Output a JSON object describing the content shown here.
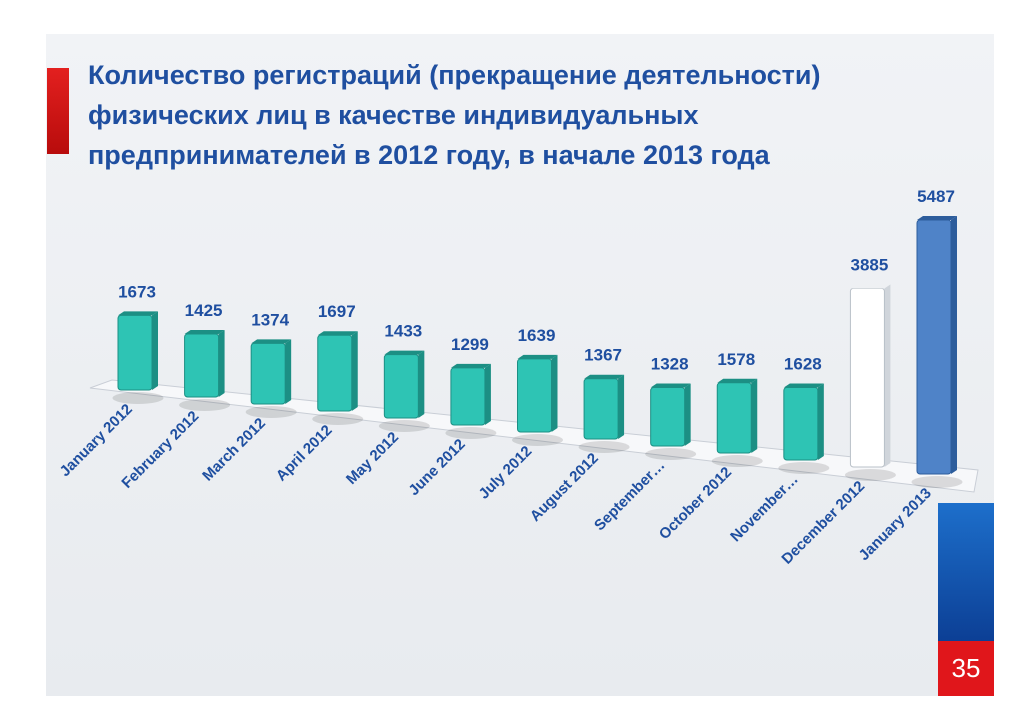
{
  "title": "Количество регистраций (прекращение деятельности)\n физических лиц в качестве индивидуальных\nпредпринимателей в 2012 году, в начале 2013 года",
  "page_number": "35",
  "colors": {
    "title": "#1f4fa0",
    "bar_teal": "#2ec4b4",
    "bar_white": "#ffffff",
    "bar_blue": "#4f83c8",
    "accent_red": "#e0161b",
    "accent_blue": "#1d6fcb"
  },
  "chart_data": {
    "type": "bar",
    "title": "Количество регистраций (прекращение деятельности) физических лиц в качестве индивидуальных предпринимателей в 2012 году, в начале 2013 года",
    "categories": [
      "January 2012",
      "February 2012",
      "March 2012",
      "April 2012",
      "May 2012",
      "June 2012",
      "July 2012",
      "August 2012",
      "September…",
      "October 2012",
      "November…",
      "December 2012",
      "January 2013"
    ],
    "values": [
      1673,
      1425,
      1374,
      1697,
      1433,
      1299,
      1639,
      1367,
      1328,
      1578,
      1628,
      3885,
      5487
    ],
    "bar_colors": [
      "#2ec4b4",
      "#2ec4b4",
      "#2ec4b4",
      "#2ec4b4",
      "#2ec4b4",
      "#2ec4b4",
      "#2ec4b4",
      "#2ec4b4",
      "#2ec4b4",
      "#2ec4b4",
      "#2ec4b4",
      "#ffffff",
      "#4f83c8"
    ],
    "xlabel": "",
    "ylabel": "",
    "ylim": [
      0,
      5487
    ],
    "grid": false,
    "legend": "none"
  }
}
